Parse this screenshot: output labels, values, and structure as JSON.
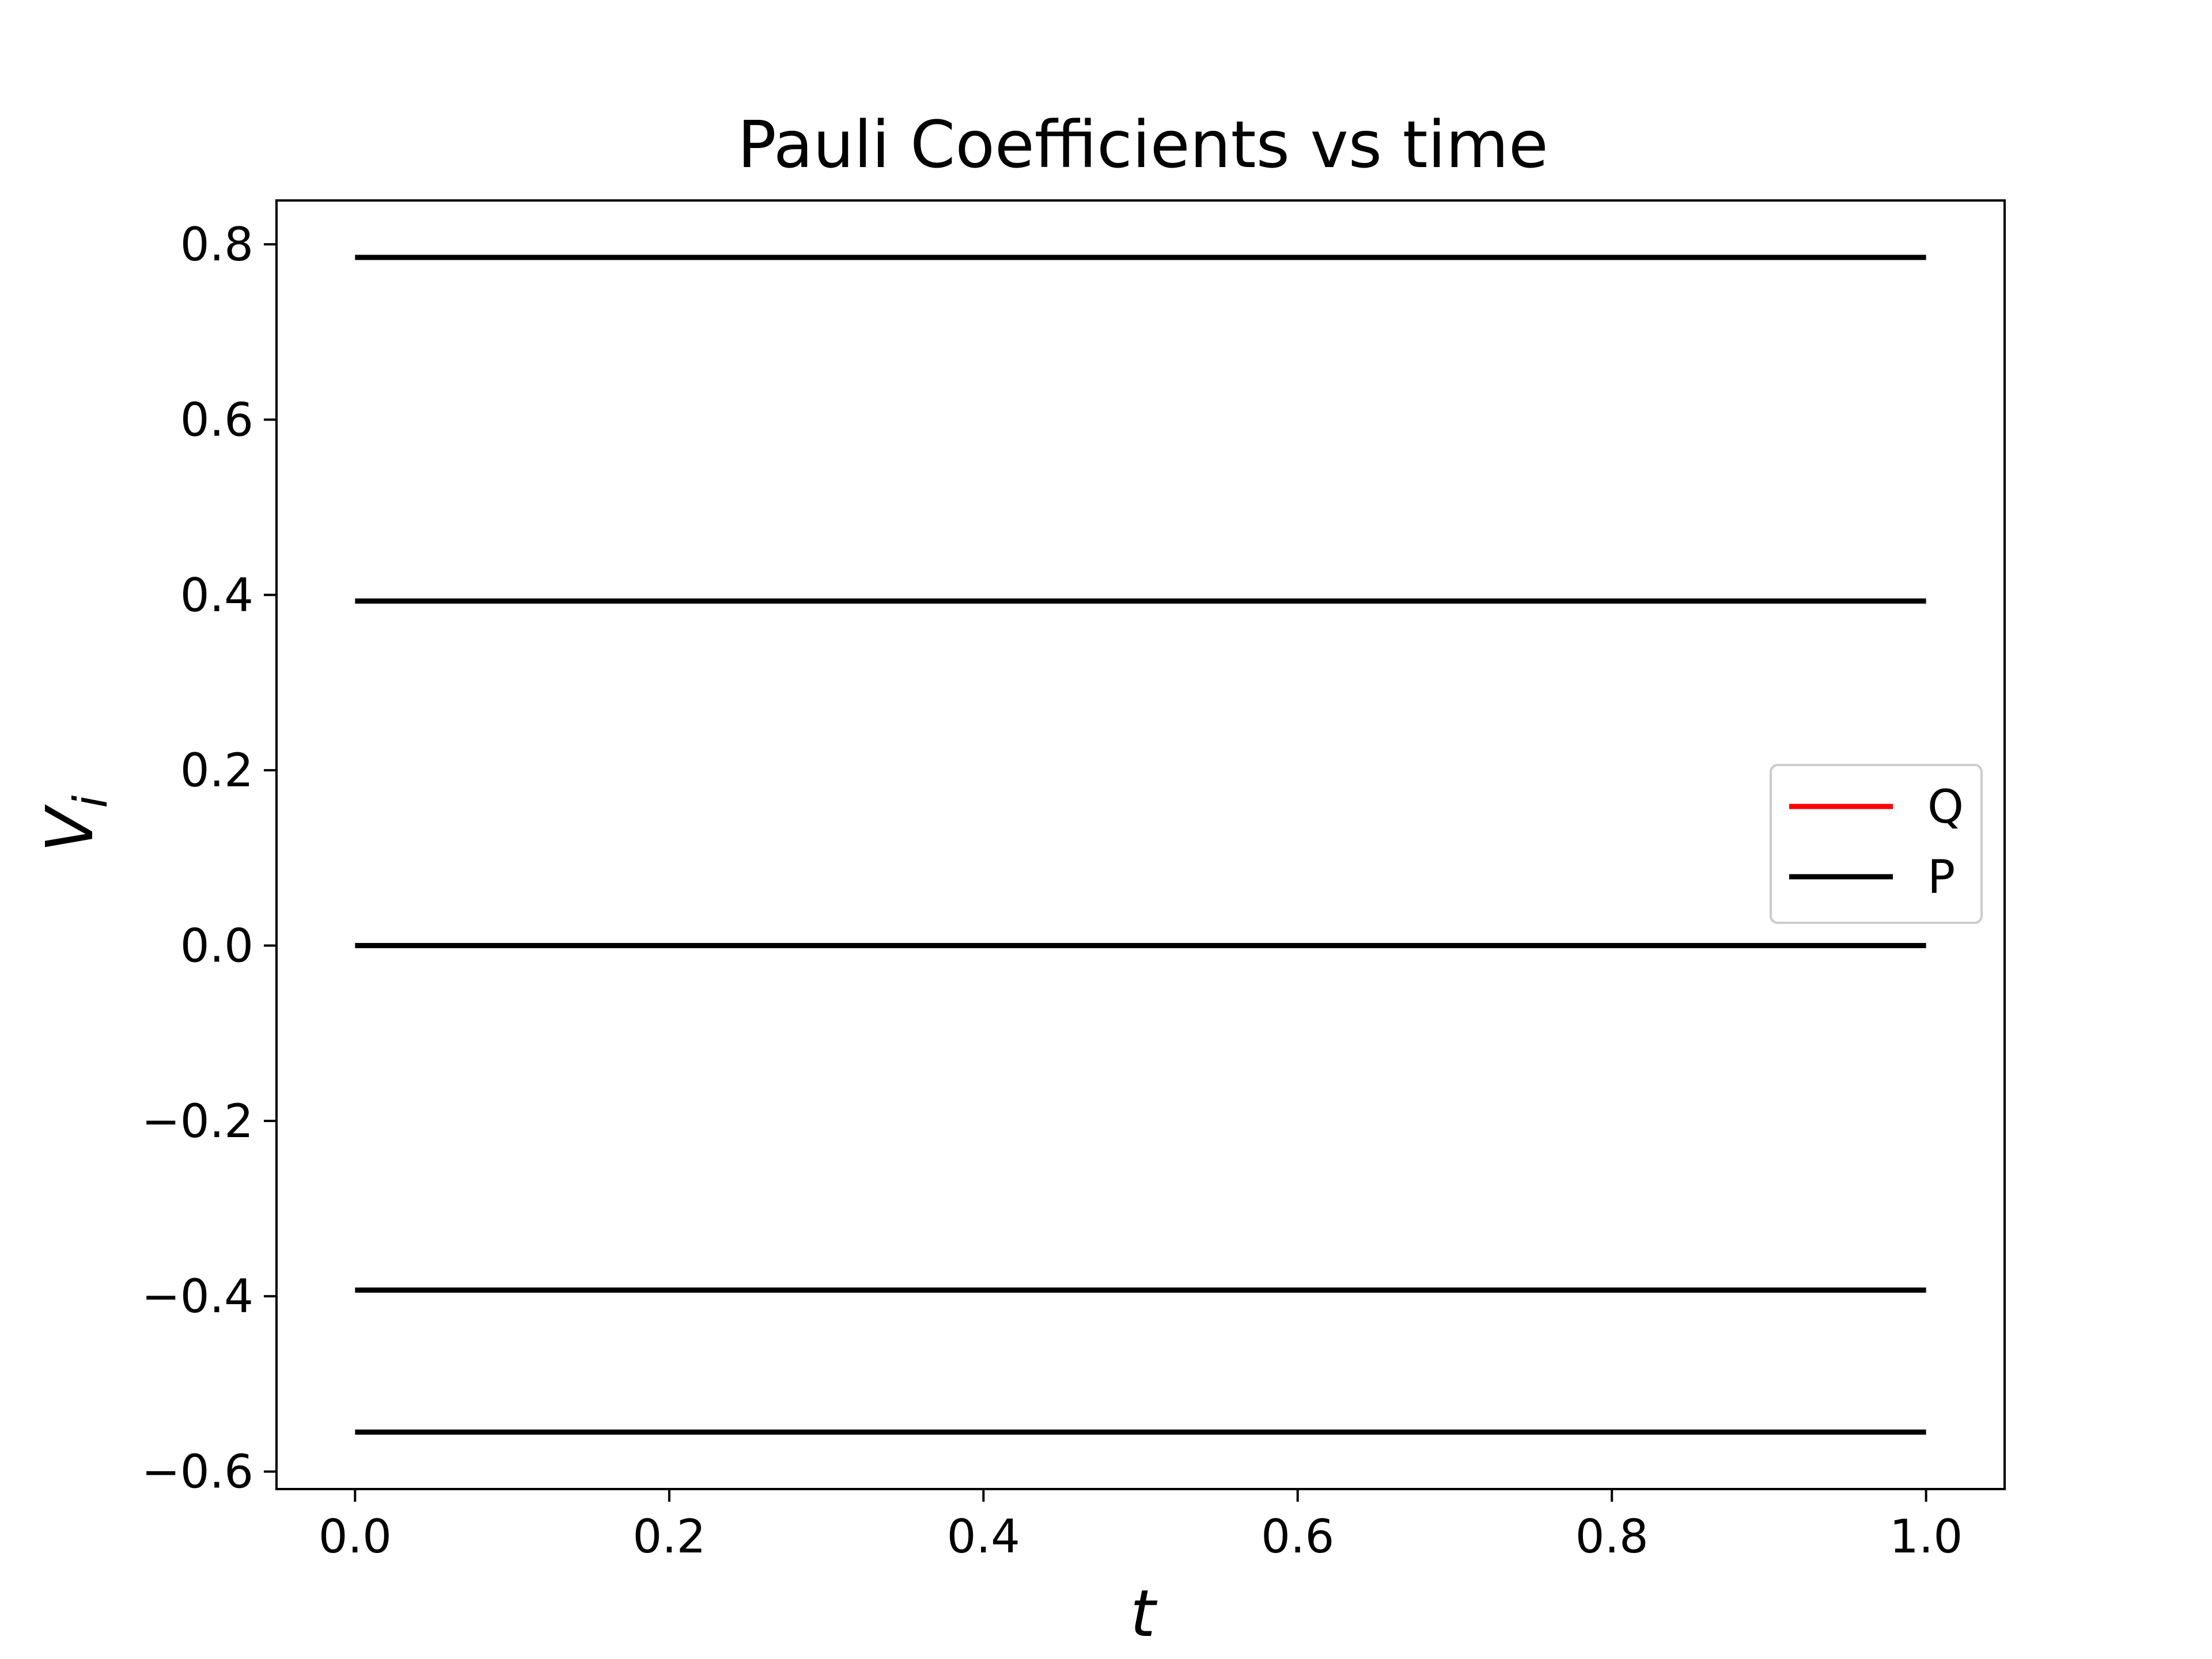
{
  "chart_data": {
    "type": "line",
    "title": "Pauli Coefficients vs time",
    "xlabel": "t",
    "ylabel": "V",
    "ylabel_subscript": "i",
    "xlim": [
      -0.05,
      1.05
    ],
    "ylim": [
      -0.62,
      0.85
    ],
    "xticks": [
      0.0,
      0.2,
      0.4,
      0.6,
      0.8,
      1.0
    ],
    "xtick_labels": [
      "0.0",
      "0.2",
      "0.4",
      "0.6",
      "0.8",
      "1.0"
    ],
    "yticks": [
      -0.6,
      -0.4,
      -0.2,
      0.0,
      0.2,
      0.4,
      0.6,
      0.8
    ],
    "ytick_labels": [
      "−0.6",
      "−0.4",
      "−0.2",
      "0.0",
      "0.2",
      "0.4",
      "0.6",
      "0.8"
    ],
    "grid": false,
    "legend_position": "center-right",
    "legend": [
      {
        "name": "Q",
        "color": "#ff0000"
      },
      {
        "name": "P",
        "color": "#000000"
      }
    ],
    "series": [
      {
        "legend": "P",
        "color": "#000000",
        "x": [
          0.0,
          1.0
        ],
        "y": [
          0.785,
          0.785
        ]
      },
      {
        "legend": "P",
        "color": "#000000",
        "x": [
          0.0,
          1.0
        ],
        "y": [
          0.393,
          0.393
        ]
      },
      {
        "legend": "P",
        "color": "#000000",
        "x": [
          0.0,
          1.0
        ],
        "y": [
          0.0,
          0.0
        ]
      },
      {
        "legend": "P",
        "color": "#000000",
        "x": [
          0.0,
          1.0
        ],
        "y": [
          -0.393,
          -0.393
        ]
      },
      {
        "legend": "P",
        "color": "#000000",
        "x": [
          0.0,
          1.0
        ],
        "y": [
          -0.555,
          -0.555
        ]
      }
    ]
  }
}
